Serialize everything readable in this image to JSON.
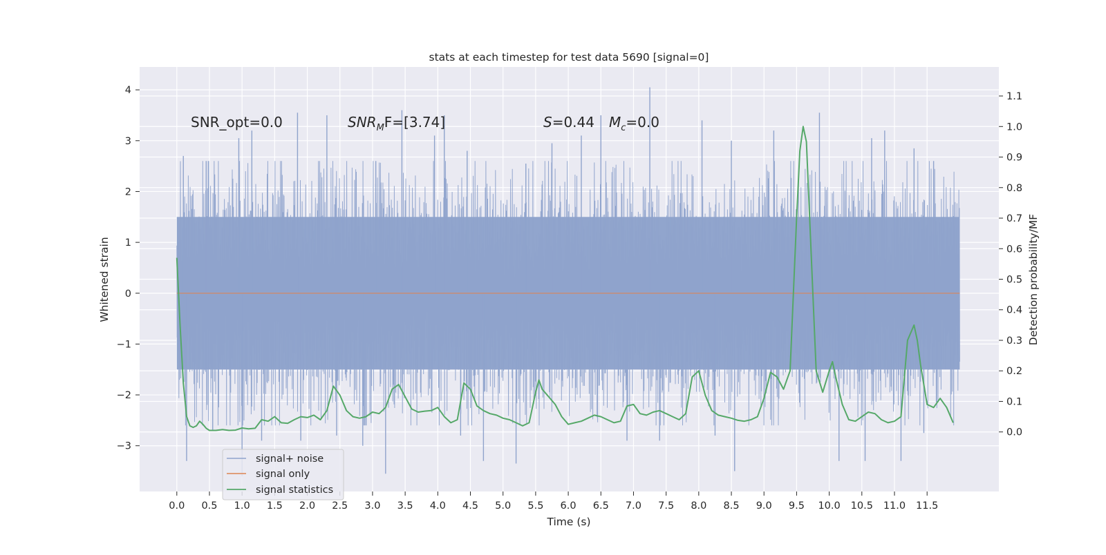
{
  "chart_data": {
    "type": "line",
    "title": "stats at each timestep for test data 5690 [signal=0]",
    "xlabel": "Time (s)",
    "ylabel": "Whitened strain",
    "y2label": "Detection probability/MF",
    "xlim": [
      -0.57,
      12.6
    ],
    "ylim": [
      -3.9,
      4.45
    ],
    "y2lim": [
      -0.195,
      1.195
    ],
    "xticks": [
      0.0,
      0.5,
      1.0,
      1.5,
      2.0,
      2.5,
      3.0,
      3.5,
      4.0,
      4.5,
      5.0,
      5.5,
      6.0,
      6.5,
      7.0,
      7.5,
      8.0,
      8.5,
      9.0,
      9.5,
      10.0,
      10.5,
      11.0,
      11.5
    ],
    "xtick_labels": [
      "0.0",
      "0.5",
      "1.0",
      "1.5",
      "2.0",
      "2.5",
      "3.0",
      "3.5",
      "4.0",
      "4.5",
      "5.0",
      "5.5",
      "6.0",
      "6.5",
      "7.0",
      "7.5",
      "8.0",
      "8.5",
      "9.0",
      "9.5",
      "10.0",
      "10.5",
      "11.0",
      "11.5"
    ],
    "yticks": [
      -3,
      -2,
      -1,
      0,
      1,
      2,
      3,
      4
    ],
    "ytick_labels": [
      "−3",
      "−2",
      "−1",
      "0",
      "1",
      "2",
      "3",
      "4"
    ],
    "y2ticks": [
      0.0,
      0.1,
      0.2,
      0.3,
      0.4,
      0.5,
      0.6,
      0.7,
      0.8,
      0.9,
      1.0,
      1.1
    ],
    "y2tick_labels": [
      "0.0",
      "0.1",
      "0.2",
      "0.3",
      "0.4",
      "0.5",
      "0.6",
      "0.7",
      "0.8",
      "0.9",
      "1.0",
      "1.1"
    ],
    "grid": true,
    "legend_position": "lower-left",
    "annotations": {
      "snr_opt": "SNR_opt=0.0",
      "snr_mf": "SNR_MF=[3.74]",
      "snr_mf_parts": {
        "base": "SNR",
        "sub": "M",
        "rest": "F=[3.74]"
      },
      "stat": "S=0.44",
      "stat_parts": {
        "sym": "S",
        "rest": "=0.44"
      },
      "mc": "M_c=0.0",
      "mc_parts": {
        "sym": "M",
        "sub": "c",
        "rest": "=0.0"
      }
    },
    "noise_series": {
      "name": "signal+ noise",
      "color": "#8fa3cc",
      "x_range": [
        0.0,
        12.0
      ],
      "band_typical": [
        -1.5,
        1.5
      ],
      "peak_values": [
        {
          "x": 0.1,
          "y": 2.7
        },
        {
          "x": 0.15,
          "y": -3.3
        },
        {
          "x": 0.45,
          "y": 2.6
        },
        {
          "x": 0.55,
          "y": -2.7
        },
        {
          "x": 0.95,
          "y": 3.05
        },
        {
          "x": 1.0,
          "y": -3.6
        },
        {
          "x": 1.15,
          "y": 3.2
        },
        {
          "x": 1.3,
          "y": -2.9
        },
        {
          "x": 1.85,
          "y": 3.55
        },
        {
          "x": 1.9,
          "y": -2.9
        },
        {
          "x": 2.3,
          "y": 3.5
        },
        {
          "x": 2.45,
          "y": -2.8
        },
        {
          "x": 2.85,
          "y": -3.0
        },
        {
          "x": 3.05,
          "y": 2.6
        },
        {
          "x": 3.2,
          "y": -3.55
        },
        {
          "x": 3.45,
          "y": 3.6
        },
        {
          "x": 3.95,
          "y": 3.1
        },
        {
          "x": 4.1,
          "y": 3.5
        },
        {
          "x": 4.35,
          "y": -2.8
        },
        {
          "x": 4.45,
          "y": 2.8
        },
        {
          "x": 4.7,
          "y": -3.3
        },
        {
          "x": 5.2,
          "y": -3.35
        },
        {
          "x": 5.35,
          "y": 2.55
        },
        {
          "x": 5.75,
          "y": 2.95
        },
        {
          "x": 6.2,
          "y": 3.1
        },
        {
          "x": 6.5,
          "y": 3.5
        },
        {
          "x": 6.9,
          "y": -2.9
        },
        {
          "x": 7.25,
          "y": 4.05
        },
        {
          "x": 7.4,
          "y": -2.9
        },
        {
          "x": 8.05,
          "y": 3.4
        },
        {
          "x": 8.25,
          "y": -2.8
        },
        {
          "x": 8.5,
          "y": 3.0
        },
        {
          "x": 8.55,
          "y": -3.5
        },
        {
          "x": 9.15,
          "y": 3.2
        },
        {
          "x": 9.85,
          "y": 3.55
        },
        {
          "x": 10.15,
          "y": -3.3
        },
        {
          "x": 10.55,
          "y": -3.3
        },
        {
          "x": 10.65,
          "y": 3.05
        },
        {
          "x": 10.85,
          "y": 3.2
        },
        {
          "x": 11.1,
          "y": -3.3
        },
        {
          "x": 11.3,
          "y": 2.85
        },
        {
          "x": 11.45,
          "y": -2.75
        },
        {
          "x": 11.6,
          "y": 2.6
        }
      ]
    },
    "signal_only_series": {
      "name": "signal only",
      "color": "#dd8452",
      "x": [
        0.0,
        12.0
      ],
      "y": [
        0.0,
        0.0
      ]
    },
    "statistics_series": {
      "name": "signal statistics",
      "color": "#55a868",
      "axis": "right",
      "points": [
        [
          0.0,
          0.57
        ],
        [
          0.05,
          0.35
        ],
        [
          0.1,
          0.16
        ],
        [
          0.15,
          0.05
        ],
        [
          0.2,
          0.02
        ],
        [
          0.25,
          0.015
        ],
        [
          0.3,
          0.02
        ],
        [
          0.35,
          0.035
        ],
        [
          0.4,
          0.025
        ],
        [
          0.45,
          0.012
        ],
        [
          0.5,
          0.005
        ],
        [
          0.6,
          0.005
        ],
        [
          0.7,
          0.008
        ],
        [
          0.8,
          0.005
        ],
        [
          0.9,
          0.006
        ],
        [
          1.0,
          0.013
        ],
        [
          1.1,
          0.01
        ],
        [
          1.2,
          0.012
        ],
        [
          1.3,
          0.04
        ],
        [
          1.4,
          0.035
        ],
        [
          1.5,
          0.05
        ],
        [
          1.6,
          0.03
        ],
        [
          1.7,
          0.028
        ],
        [
          1.8,
          0.04
        ],
        [
          1.9,
          0.05
        ],
        [
          2.0,
          0.047
        ],
        [
          2.1,
          0.055
        ],
        [
          2.2,
          0.04
        ],
        [
          2.3,
          0.07
        ],
        [
          2.4,
          0.15
        ],
        [
          2.5,
          0.12
        ],
        [
          2.6,
          0.07
        ],
        [
          2.7,
          0.05
        ],
        [
          2.8,
          0.045
        ],
        [
          2.9,
          0.05
        ],
        [
          3.0,
          0.065
        ],
        [
          3.1,
          0.06
        ],
        [
          3.2,
          0.08
        ],
        [
          3.3,
          0.14
        ],
        [
          3.4,
          0.155
        ],
        [
          3.5,
          0.115
        ],
        [
          3.6,
          0.075
        ],
        [
          3.7,
          0.065
        ],
        [
          3.8,
          0.068
        ],
        [
          3.9,
          0.07
        ],
        [
          4.0,
          0.08
        ],
        [
          4.1,
          0.05
        ],
        [
          4.2,
          0.03
        ],
        [
          4.3,
          0.04
        ],
        [
          4.4,
          0.16
        ],
        [
          4.5,
          0.14
        ],
        [
          4.6,
          0.085
        ],
        [
          4.7,
          0.07
        ],
        [
          4.8,
          0.06
        ],
        [
          4.9,
          0.055
        ],
        [
          5.0,
          0.045
        ],
        [
          5.1,
          0.04
        ],
        [
          5.2,
          0.03
        ],
        [
          5.3,
          0.02
        ],
        [
          5.4,
          0.03
        ],
        [
          5.5,
          0.13
        ],
        [
          5.55,
          0.17
        ],
        [
          5.6,
          0.14
        ],
        [
          5.7,
          0.115
        ],
        [
          5.8,
          0.09
        ],
        [
          5.9,
          0.05
        ],
        [
          6.0,
          0.025
        ],
        [
          6.1,
          0.03
        ],
        [
          6.2,
          0.035
        ],
        [
          6.3,
          0.045
        ],
        [
          6.4,
          0.055
        ],
        [
          6.5,
          0.05
        ],
        [
          6.6,
          0.04
        ],
        [
          6.7,
          0.03
        ],
        [
          6.8,
          0.035
        ],
        [
          6.9,
          0.085
        ],
        [
          7.0,
          0.09
        ],
        [
          7.1,
          0.06
        ],
        [
          7.2,
          0.055
        ],
        [
          7.3,
          0.065
        ],
        [
          7.4,
          0.07
        ],
        [
          7.5,
          0.06
        ],
        [
          7.6,
          0.05
        ],
        [
          7.7,
          0.04
        ],
        [
          7.8,
          0.06
        ],
        [
          7.9,
          0.18
        ],
        [
          8.0,
          0.2
        ],
        [
          8.1,
          0.12
        ],
        [
          8.2,
          0.07
        ],
        [
          8.3,
          0.055
        ],
        [
          8.4,
          0.05
        ],
        [
          8.5,
          0.045
        ],
        [
          8.6,
          0.038
        ],
        [
          8.7,
          0.035
        ],
        [
          8.8,
          0.04
        ],
        [
          8.9,
          0.05
        ],
        [
          9.0,
          0.11
        ],
        [
          9.1,
          0.195
        ],
        [
          9.2,
          0.18
        ],
        [
          9.3,
          0.14
        ],
        [
          9.4,
          0.2
        ],
        [
          9.5,
          0.7
        ],
        [
          9.55,
          0.92
        ],
        [
          9.6,
          1.0
        ],
        [
          9.65,
          0.95
        ],
        [
          9.7,
          0.7
        ],
        [
          9.8,
          0.2
        ],
        [
          9.9,
          0.13
        ],
        [
          10.0,
          0.2
        ],
        [
          10.05,
          0.23
        ],
        [
          10.1,
          0.18
        ],
        [
          10.2,
          0.09
        ],
        [
          10.3,
          0.04
        ],
        [
          10.4,
          0.035
        ],
        [
          10.5,
          0.05
        ],
        [
          10.6,
          0.065
        ],
        [
          10.7,
          0.06
        ],
        [
          10.8,
          0.04
        ],
        [
          10.9,
          0.03
        ],
        [
          11.0,
          0.035
        ],
        [
          11.1,
          0.05
        ],
        [
          11.2,
          0.3
        ],
        [
          11.3,
          0.35
        ],
        [
          11.35,
          0.3
        ],
        [
          11.4,
          0.22
        ],
        [
          11.5,
          0.09
        ],
        [
          11.6,
          0.08
        ],
        [
          11.7,
          0.11
        ],
        [
          11.8,
          0.08
        ],
        [
          11.9,
          0.03
        ]
      ]
    }
  },
  "legend": {
    "items": [
      {
        "label": "signal+ noise",
        "color": "#8fa3cc"
      },
      {
        "label": "signal only",
        "color": "#dd8452"
      },
      {
        "label": "signal statistics",
        "color": "#55a868"
      }
    ]
  },
  "style": {
    "plot_background": "#eaeaf2",
    "grid_color": "#ffffff",
    "text_color": "#262626"
  }
}
